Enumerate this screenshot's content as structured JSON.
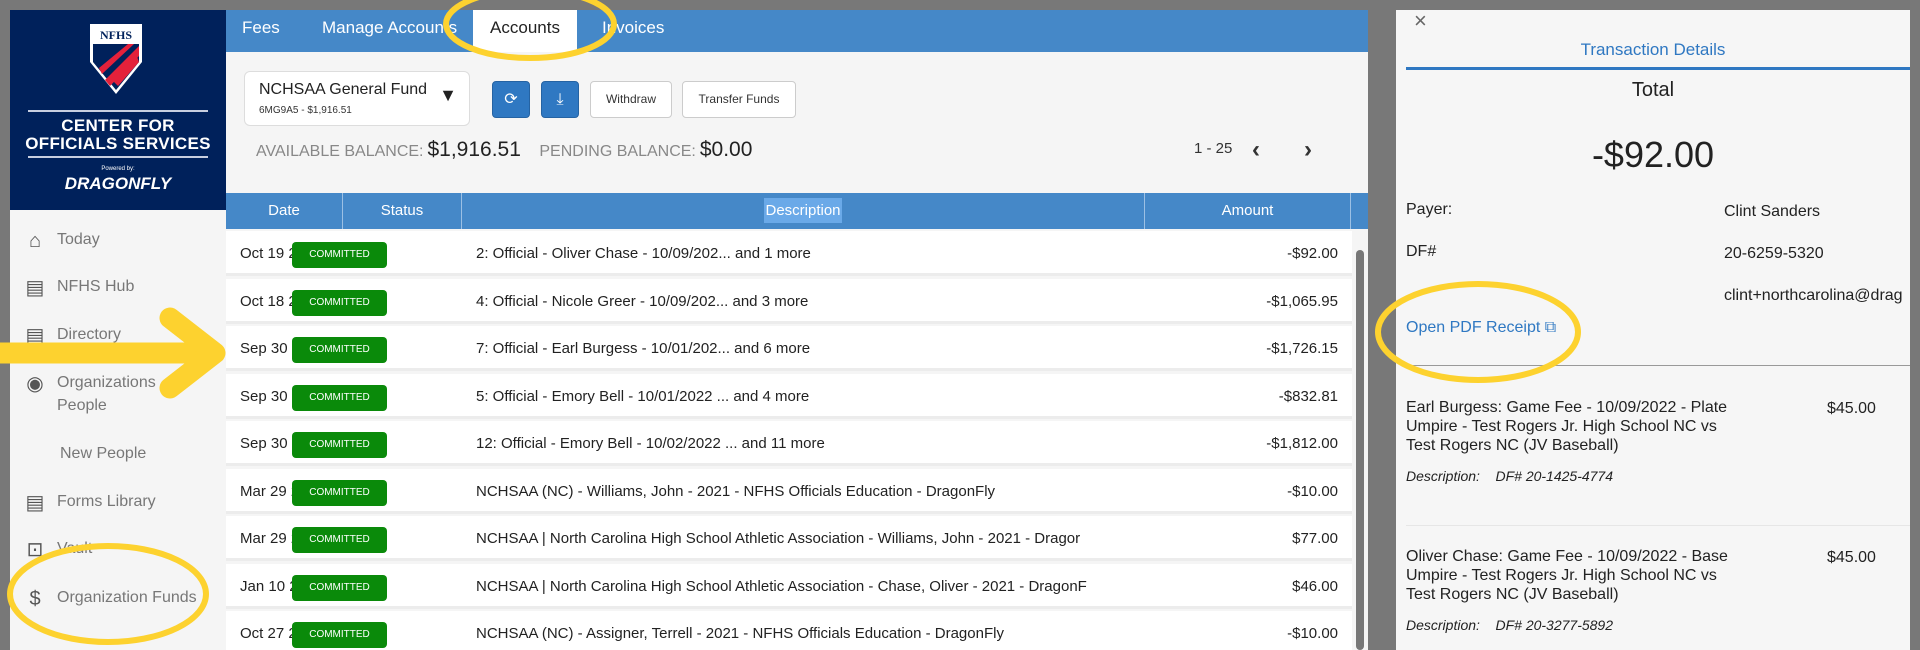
{
  "sidebar": {
    "logo": {
      "brand": "NFHS",
      "line1": "CENTER FOR",
      "line2": "OFFICIALS SERVICES",
      "powered": "Powered by:",
      "partner": "DRAGONFLY"
    },
    "items": [
      {
        "label": "Today",
        "icon": "home-icon"
      },
      {
        "label": "NFHS Hub",
        "icon": "document-icon"
      },
      {
        "label": "Directory",
        "icon": "document-icon"
      },
      {
        "label": "Organizations",
        "label2": "People",
        "icon": "user-circle-icon"
      },
      {
        "label": "New People",
        "icon": ""
      },
      {
        "label": "Forms Library",
        "icon": "document-icon"
      },
      {
        "label": "Vault",
        "icon": "vault-icon"
      },
      {
        "label": "Organization Funds",
        "icon": "dollar-circle-icon"
      }
    ]
  },
  "tabs": [
    {
      "label": "Fees"
    },
    {
      "label": "Manage Accounts"
    },
    {
      "label": "Accounts",
      "active": true
    },
    {
      "label": "Invoices"
    }
  ],
  "account": {
    "name": "NCHSAA General Fund",
    "sub": "6MG9A5 - $1,916.51"
  },
  "toolbar": {
    "refresh": "refresh-icon",
    "download": "download-icon",
    "withdraw": "Withdraw",
    "transfer": "Transfer Funds"
  },
  "balance": {
    "available_label": "AVAILABLE BALANCE:",
    "available": "$1,916.51",
    "pending_label": "PENDING BALANCE:",
    "pending": "$0.00"
  },
  "pager": {
    "range": "1 - 25",
    "prev": "‹",
    "next": "›"
  },
  "table": {
    "headers": [
      "Date",
      "Status",
      "Description",
      "Amount"
    ],
    "rows": [
      {
        "date": "Oct 19 2022",
        "status": "COMMITTED",
        "desc": "2: Official - Oliver Chase - 10/09/202... and 1 more",
        "amount": "-$92.00"
      },
      {
        "date": "Oct 18 2022",
        "status": "COMMITTED",
        "desc": "4: Official - Nicole Greer - 10/09/202... and 3 more",
        "amount": "-$1,065.95"
      },
      {
        "date": "Sep 30 2022",
        "status": "COMMITTED",
        "desc": "7: Official - Earl Burgess - 10/01/202... and 6 more",
        "amount": "-$1,726.15"
      },
      {
        "date": "Sep 30 2022",
        "status": "COMMITTED",
        "desc": "5: Official - Emory Bell - 10/01/2022 ... and 4 more",
        "amount": "-$832.81"
      },
      {
        "date": "Sep 30 2022",
        "status": "COMMITTED",
        "desc": "12: Official - Emory Bell - 10/02/2022 ... and 11 more",
        "amount": "-$1,812.00"
      },
      {
        "date": "Mar 29 2022",
        "status": "COMMITTED",
        "desc": "NCHSAA (NC) - Williams, John - 2021 - NFHS Officials Education - DragonFly",
        "amount": "-$10.00"
      },
      {
        "date": "Mar 29 2022",
        "status": "COMMITTED",
        "desc": "NCHSAA | North Carolina High School Athletic Association - Williams, John - 2021 - Dragor",
        "amount": "$77.00"
      },
      {
        "date": "Jan 10 2022",
        "status": "COMMITTED",
        "desc": "NCHSAA | North Carolina High School Athletic Association - Chase, Oliver - 2021 - DragonF",
        "amount": "$46.00"
      },
      {
        "date": "Oct 27 2021",
        "status": "COMMITTED",
        "desc": "NCHSAA (NC) - Assigner, Terrell - 2021 - NFHS Officials Education - DragonFly",
        "amount": "-$10.00"
      }
    ]
  },
  "details": {
    "close": "×",
    "title": "Transaction Details",
    "total_label": "Total",
    "total": "-$92.00",
    "payer_label": "Payer:",
    "payer": "Clint Sanders",
    "df_label": "DF#",
    "df": "20-6259-5320",
    "email": "clint+northcarolina@drag",
    "pdf_link": "Open PDF Receipt",
    "items": [
      {
        "text": "Earl Burgess: Game Fee - 10/09/2022 - Plate Umpire - Test Rogers Jr. High School NC vs Test Rogers NC (JV Baseball)",
        "amount": "$45.00",
        "desc_label": "Description:",
        "desc": "DF# 20-1425-4774"
      },
      {
        "text": "Oliver Chase: Game Fee - 10/09/2022 - Base Umpire - Test Rogers Jr. High School NC vs Test Rogers NC (JV Baseball)",
        "amount": "$45.00",
        "desc_label": "Description:",
        "desc": "DF# 20-3277-5892"
      }
    ]
  },
  "colors": {
    "navy": "#00215b",
    "blue": "#4588c8",
    "committed": "#0a8a0a",
    "annotation": "#fdd22f",
    "link": "#2f78c2"
  }
}
